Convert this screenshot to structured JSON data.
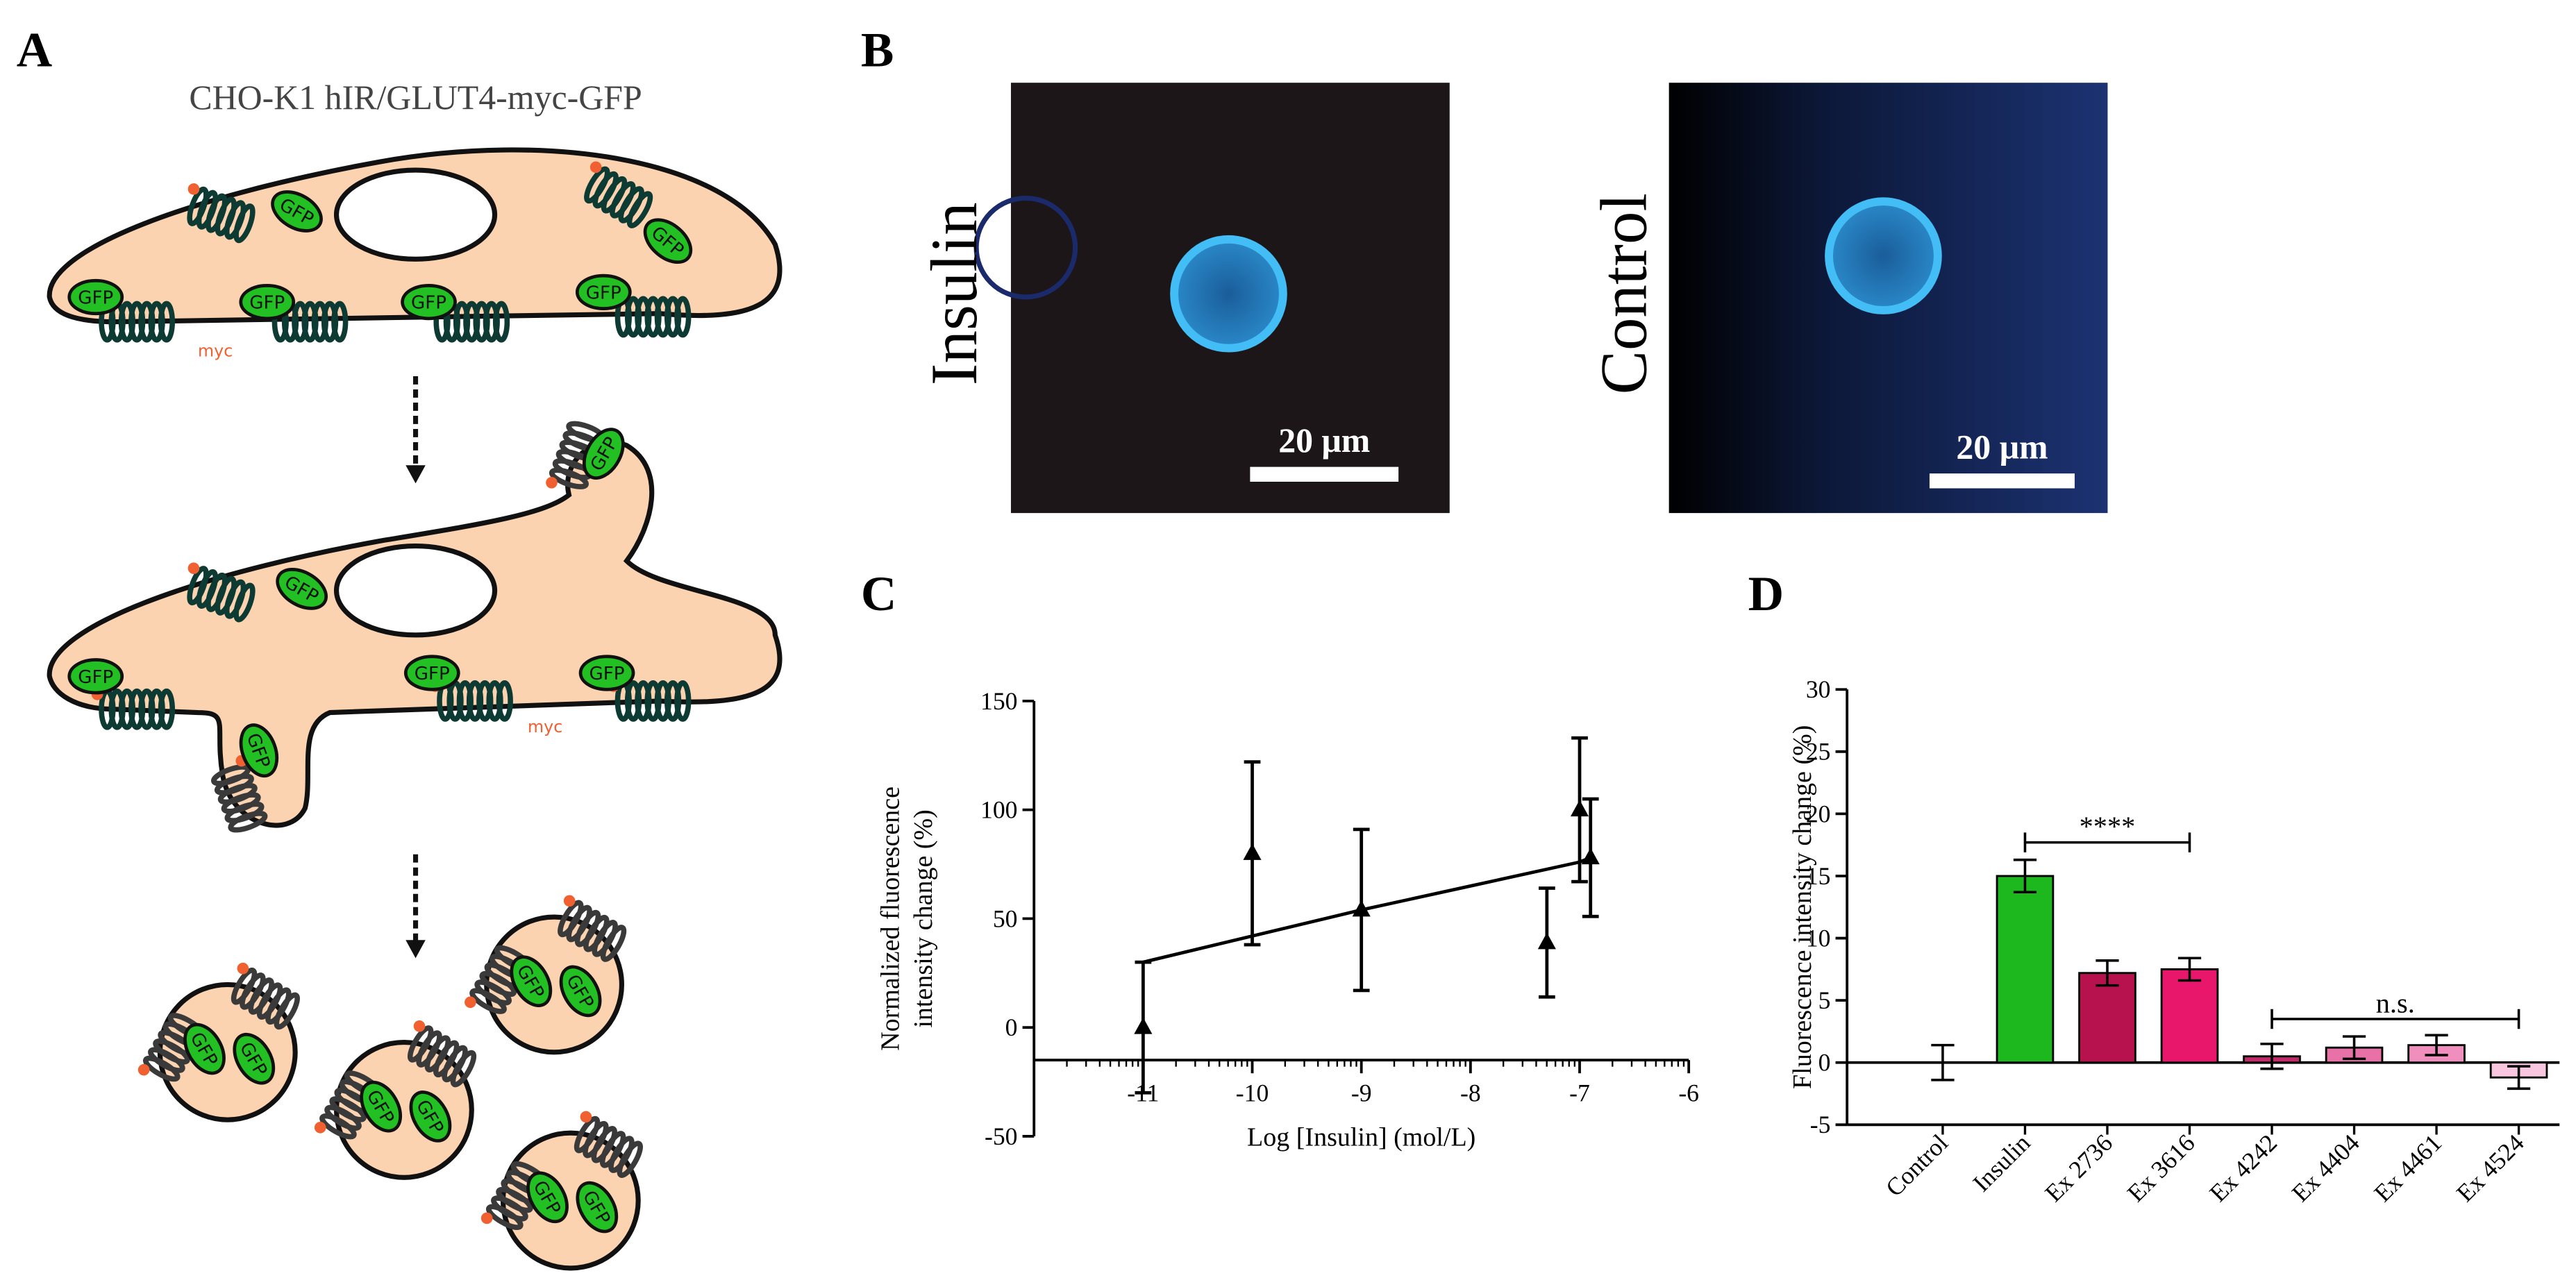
{
  "panel_labels": [
    "A",
    "B",
    "C",
    "D"
  ],
  "diagram": {
    "title": "CHO-K1 hIR/GLUT4-myc-GFP",
    "protein_label": "GFP",
    "tag_label": "myc"
  },
  "images": [
    {
      "label": "Insulin",
      "scale_bar": "20 μm"
    },
    {
      "label": "Control",
      "scale_bar": "20 μm"
    }
  ],
  "chart_data": [
    {
      "type": "scatter",
      "xlabel": "Log [Insulin] (mol/L)",
      "ylabel_lines": [
        "Normalized fluorescence",
        "intensity change (%)"
      ],
      "xlim": [
        -12,
        -6
      ],
      "ylim": [
        -50,
        150
      ],
      "xticks": [
        -11,
        -10,
        -9,
        -8,
        -7,
        -6
      ],
      "yticks": [
        -50,
        0,
        50,
        100,
        150
      ],
      "log_minor_ticks": true,
      "xaxis_crossing": -15,
      "points": {
        "color": "#000000",
        "marker": "triangle",
        "x": [
          -11,
          -10,
          -9,
          -7.3,
          -7,
          -6.9
        ],
        "values": [
          0,
          80,
          54,
          39,
          100,
          78
        ],
        "errors": [
          30,
          42,
          37,
          25,
          33,
          27
        ]
      },
      "fit": {
        "color": "#000000",
        "x": [
          -11,
          -10,
          -9,
          -8,
          -7,
          -6.9
        ],
        "values": [
          30,
          42,
          54,
          65,
          76,
          78
        ]
      }
    },
    {
      "type": "bar",
      "ylabel": "Fluorescence intensity change (%)",
      "categories": [
        "Control",
        "Insulin",
        "Ex 2736",
        "Ex 3616",
        "Ex 4242",
        "Ex 4404",
        "Ex 4461",
        "Ex 4524"
      ],
      "values": [
        0,
        15,
        7.2,
        7.5,
        0.5,
        1.2,
        1.4,
        -1.2
      ],
      "errors": [
        1.4,
        1.3,
        1.0,
        0.9,
        1.0,
        0.9,
        0.8,
        0.9
      ],
      "colors": [
        "#ffffff",
        "#1db81d",
        "#b8124e",
        "#e8176c",
        "#c42a6a",
        "#e872a8",
        "#f08ebd",
        "#f8c6de"
      ],
      "ylim": [
        -5,
        30
      ],
      "yticks": [
        -5,
        0,
        5,
        10,
        15,
        20,
        25,
        30
      ],
      "annotations": [
        {
          "text": "****",
          "from": "Insulin",
          "to": "Ex 3616",
          "y": 17.7
        },
        {
          "text": "n.s.",
          "from": "Ex 4242",
          "to": "Ex 4524",
          "y": 3.5
        }
      ]
    }
  ]
}
